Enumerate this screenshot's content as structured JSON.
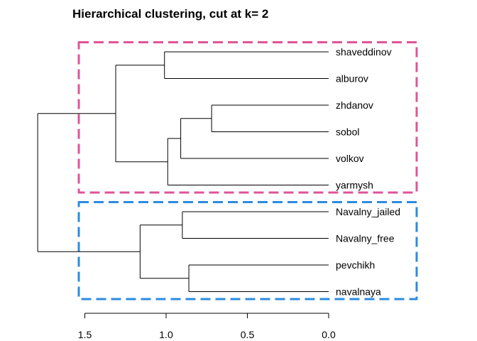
{
  "chart_data": {
    "type": "dendrogram",
    "title": "Hierarchical clustering,  cut at k= 2",
    "orientation": "horizontal",
    "xlabel": "",
    "ylabel": "",
    "xlim": [
      1.5,
      0.0
    ],
    "xticks": [
      1.5,
      1.0,
      0.5,
      0.0
    ],
    "xtick_labels": [
      "1.5",
      "1.0",
      "0.5",
      "0.0"
    ],
    "leaves": [
      "shaveddinov",
      "alburov",
      "zhdanov",
      "sobol",
      "volkov",
      "yarmysh",
      "Navalny_jailed",
      "Navalny_free",
      "pevchikh",
      "navalnaya"
    ],
    "merges": [
      {
        "a": "zhdanov",
        "b": "sobol",
        "height": 0.72
      },
      {
        "a": "Navalny_jailed",
        "b": "Navalny_free",
        "height": 0.9
      },
      {
        "a": "pevchikh",
        "b": "navalnaya",
        "height": 0.86
      },
      {
        "a": "zhdanov+sobol",
        "b": "volkov",
        "height": 0.91
      },
      {
        "a": "zhdanov+sobol+volkov",
        "b": "yarmysh",
        "height": 0.99
      },
      {
        "a": "shaveddinov",
        "b": "alburov",
        "height": 1.01
      },
      {
        "a": "Navalny_jailed+Navalny_free",
        "b": "pevchikh+navalnaya",
        "height": 1.16
      },
      {
        "a": "shaveddinov+alburov",
        "b": "zhdanov+sobol+volkov+yarmysh",
        "height": 1.31
      },
      {
        "a": "cluster_1",
        "b": "cluster_2",
        "height": 1.79
      }
    ],
    "clusters": [
      {
        "members": [
          "shaveddinov",
          "alburov",
          "zhdanov",
          "sobol",
          "volkov",
          "yarmysh"
        ],
        "color": "#df5497"
      },
      {
        "members": [
          "Navalny_jailed",
          "Navalny_free",
          "pevchikh",
          "navalnaya"
        ],
        "color": "#2b8be0"
      }
    ]
  }
}
